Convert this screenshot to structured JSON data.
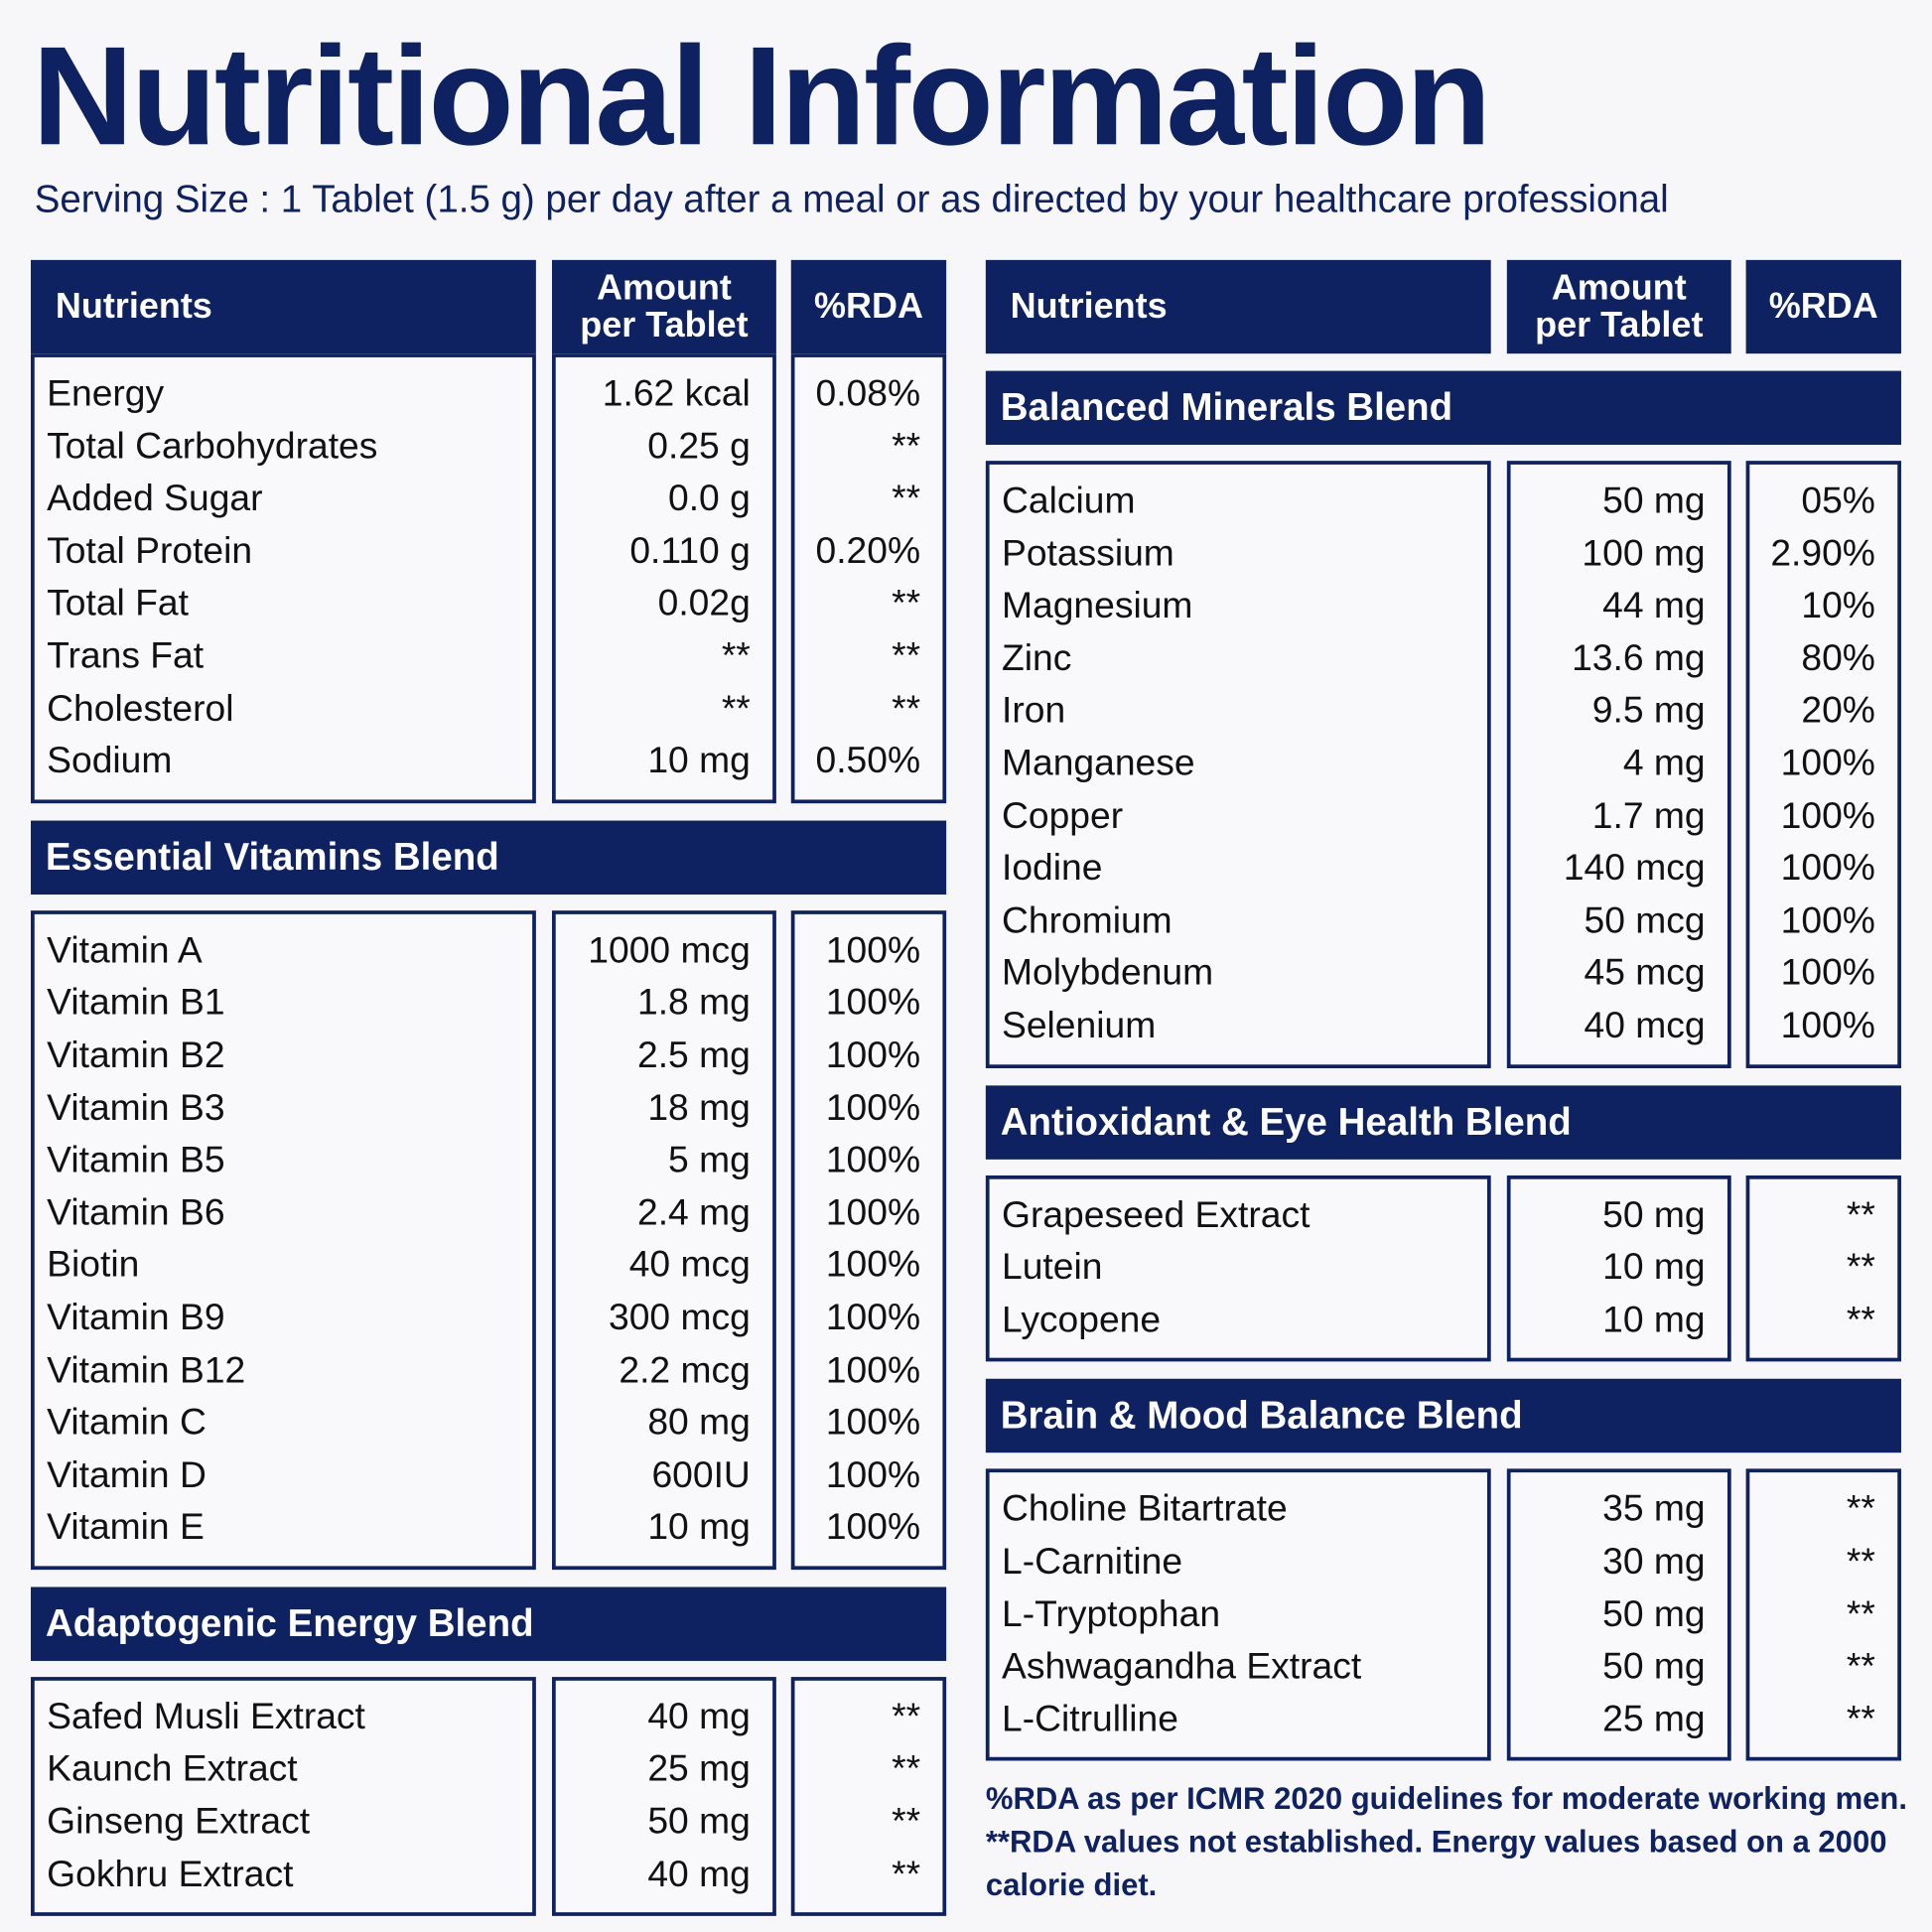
{
  "title": "Nutritional Information",
  "subtitle": "Serving Size : 1 Tablet (1.5 g) per day after a meal or as directed by your healthcare professional",
  "left": {
    "headers": [
      "Nutrients",
      "Amount per Tablet",
      "%RDA"
    ],
    "sections": [
      {
        "rows": [
          [
            "Energy",
            "1.62 kcal",
            "0.08%"
          ],
          [
            "Total Carbohydrates",
            "0.25 g",
            "**"
          ],
          [
            "Added Sugar",
            "0.0 g",
            "**"
          ],
          [
            "Total Protein",
            "0.110 g",
            "0.20%"
          ],
          [
            "Total Fat",
            "0.02g",
            "**"
          ],
          [
            "Trans Fat",
            "**",
            "**"
          ],
          [
            "Cholesterol",
            "**",
            "**"
          ],
          [
            "Sodium",
            "10 mg",
            "0.50%"
          ]
        ]
      },
      {
        "title": "Essential Vitamins Blend",
        "rows": [
          [
            "Vitamin A",
            "1000 mcg",
            "100%"
          ],
          [
            "Vitamin B1",
            "1.8 mg",
            "100%"
          ],
          [
            "Vitamin B2",
            "2.5 mg",
            "100%"
          ],
          [
            "Vitamin B3",
            "18 mg",
            "100%"
          ],
          [
            "Vitamin B5",
            "5 mg",
            "100%"
          ],
          [
            "Vitamin B6",
            "2.4 mg",
            "100%"
          ],
          [
            "Biotin",
            "40 mcg",
            "100%"
          ],
          [
            "Vitamin B9",
            "300 mcg",
            "100%"
          ],
          [
            "Vitamin B12",
            "2.2 mcg",
            "100%"
          ],
          [
            "Vitamin C",
            "80 mg",
            "100%"
          ],
          [
            "Vitamin D",
            "600IU",
            "100%"
          ],
          [
            "Vitamin E",
            "10 mg",
            "100%"
          ]
        ]
      },
      {
        "title": "Adaptogenic Energy Blend",
        "rows": [
          [
            "Safed Musli Extract",
            "40 mg",
            "**"
          ],
          [
            "Kaunch Extract",
            "25 mg",
            "**"
          ],
          [
            "Ginseng Extract",
            "50 mg",
            "**"
          ],
          [
            "Gokhru Extract",
            "40 mg",
            "**"
          ]
        ]
      }
    ]
  },
  "right": {
    "headers": [
      "Nutrients",
      "Amount per Tablet",
      "%RDA"
    ],
    "sections": [
      {
        "title": "Balanced Minerals Blend",
        "rows": [
          [
            "Calcium",
            "50 mg",
            "05%"
          ],
          [
            "Potassium",
            "100 mg",
            "2.90%"
          ],
          [
            "Magnesium",
            "44 mg",
            "10%"
          ],
          [
            "Zinc",
            "13.6 mg",
            "80%"
          ],
          [
            "Iron",
            "9.5 mg",
            "20%"
          ],
          [
            "Manganese",
            "4 mg",
            "100%"
          ],
          [
            "Copper",
            "1.7 mg",
            "100%"
          ],
          [
            "Iodine",
            "140 mcg",
            "100%"
          ],
          [
            "Chromium",
            "50 mcg",
            "100%"
          ],
          [
            "Molybdenum",
            "45 mcg",
            "100%"
          ],
          [
            "Selenium",
            "40 mcg",
            "100%"
          ]
        ]
      },
      {
        "title": "Antioxidant & Eye Health Blend",
        "rows": [
          [
            "Grapeseed Extract",
            "50 mg",
            "**"
          ],
          [
            "Lutein",
            "10 mg",
            "**"
          ],
          [
            "Lycopene",
            "10 mg",
            "**"
          ]
        ]
      },
      {
        "title": "Brain & Mood Balance Blend",
        "rows": [
          [
            "Choline Bitartrate",
            "35 mg",
            "**"
          ],
          [
            "L-Carnitine",
            "30 mg",
            "**"
          ],
          [
            "L-Tryptophan",
            "50 mg",
            "**"
          ],
          [
            "Ashwagandha Extract",
            "50 mg",
            "**"
          ],
          [
            "L-Citrulline",
            "25 mg",
            "**"
          ]
        ]
      }
    ]
  },
  "footnote": "%RDA as per ICMR 2020 guidelines for moderate working men. **RDA values not established. Energy values based on a 2000 calorie diet."
}
